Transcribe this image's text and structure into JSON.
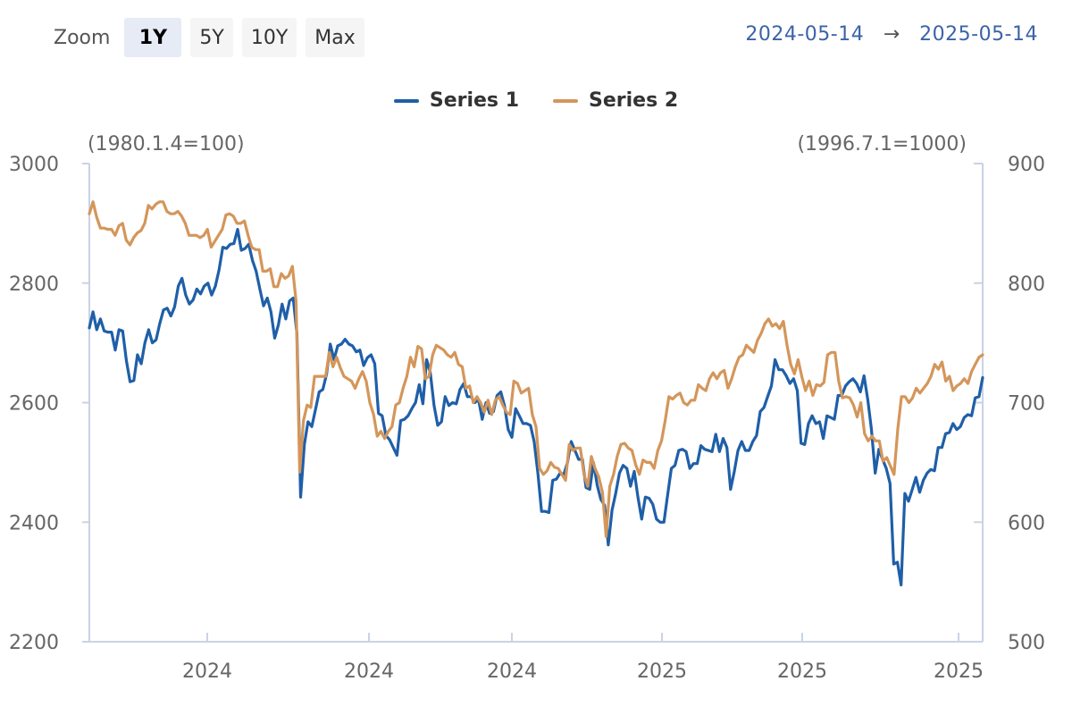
{
  "zoom": {
    "label": "Zoom",
    "options": [
      {
        "label": "1Y",
        "active": true
      },
      {
        "label": "5Y",
        "active": false
      },
      {
        "label": "10Y",
        "active": false
      },
      {
        "label": "Max",
        "active": false
      }
    ]
  },
  "range": {
    "from": "2024-05-14",
    "arrow": "→",
    "to": "2025-05-14"
  },
  "colors": {
    "series1": "#1f5fa8",
    "series2": "#d4965a",
    "axis": "#c9d3e6",
    "text": "#666666"
  },
  "chart_data": {
    "type": "line",
    "left_axis_note": "(1980.1.4=100)",
    "right_axis_note": "(1996.7.1=1000)",
    "x_tick_labels": [
      "2024",
      "2024",
      "2024",
      "2025",
      "2025",
      "2025"
    ],
    "left_axis": {
      "min": 2200,
      "max": 3000,
      "ticks": [
        2200,
        2400,
        2600,
        2800,
        3000
      ]
    },
    "right_axis": {
      "min": 500,
      "max": 900,
      "ticks": [
        500,
        600,
        700,
        800,
        900
      ]
    },
    "legend_position": "top-center",
    "grid": false,
    "series": [
      {
        "name": "Series 1",
        "axis": "left",
        "values": [
          2725,
          2752,
          2722,
          2740,
          2720,
          2718,
          2718,
          2688,
          2722,
          2720,
          2670,
          2635,
          2637,
          2680,
          2665,
          2700,
          2722,
          2700,
          2705,
          2732,
          2755,
          2758,
          2745,
          2760,
          2795,
          2808,
          2780,
          2765,
          2772,
          2790,
          2782,
          2795,
          2800,
          2780,
          2795,
          2822,
          2860,
          2858,
          2865,
          2866,
          2890,
          2855,
          2858,
          2865,
          2838,
          2820,
          2790,
          2762,
          2775,
          2752,
          2708,
          2730,
          2765,
          2740,
          2770,
          2775,
          2715,
          2442,
          2530,
          2568,
          2560,
          2588,
          2618,
          2622,
          2648,
          2698,
          2672,
          2695,
          2698,
          2706,
          2698,
          2695,
          2685,
          2688,
          2662,
          2675,
          2680,
          2665,
          2582,
          2578,
          2545,
          2538,
          2525,
          2512,
          2570,
          2572,
          2578,
          2590,
          2600,
          2630,
          2598,
          2672,
          2650,
          2595,
          2562,
          2568,
          2610,
          2595,
          2600,
          2598,
          2622,
          2632,
          2610,
          2610,
          2600,
          2605,
          2572,
          2600,
          2582,
          2585,
          2612,
          2618,
          2595,
          2555,
          2542,
          2590,
          2578,
          2565,
          2565,
          2562,
          2535,
          2482,
          2418,
          2418,
          2416,
          2470,
          2472,
          2482,
          2480,
          2500,
          2535,
          2520,
          2505,
          2505,
          2458,
          2455,
          2500,
          2462,
          2438,
          2428,
          2362,
          2420,
          2448,
          2482,
          2495,
          2490,
          2460,
          2485,
          2442,
          2405,
          2442,
          2440,
          2430,
          2405,
          2400,
          2400,
          2445,
          2490,
          2495,
          2520,
          2522,
          2518,
          2490,
          2498,
          2498,
          2528,
          2522,
          2520,
          2518,
          2547,
          2518,
          2540,
          2525,
          2455,
          2485,
          2520,
          2535,
          2520,
          2520,
          2535,
          2545,
          2585,
          2592,
          2610,
          2628,
          2672,
          2655,
          2655,
          2645,
          2632,
          2640,
          2620,
          2532,
          2530,
          2565,
          2578,
          2565,
          2568,
          2540,
          2578,
          2575,
          2572,
          2612,
          2612,
          2628,
          2635,
          2640,
          2632,
          2618,
          2645,
          2605,
          2555,
          2482,
          2522,
          2505,
          2490,
          2465,
          2330,
          2333,
          2295,
          2448,
          2435,
          2455,
          2475,
          2450,
          2470,
          2482,
          2488,
          2486,
          2525,
          2525,
          2548,
          2550,
          2565,
          2555,
          2560,
          2575,
          2580,
          2578,
          2608,
          2610,
          2642
        ]
      },
      {
        "name": "Series 2",
        "axis": "right",
        "values": [
          858,
          868,
          855,
          846,
          846,
          845,
          845,
          840,
          848,
          850,
          836,
          832,
          838,
          842,
          844,
          850,
          865,
          862,
          866,
          868,
          868,
          860,
          858,
          858,
          860,
          856,
          850,
          840,
          840,
          840,
          838,
          840,
          845,
          830,
          835,
          840,
          845,
          857,
          858,
          856,
          850,
          850,
          852,
          840,
          830,
          828,
          828,
          810,
          810,
          812,
          797,
          797,
          808,
          804,
          806,
          814,
          785,
          642,
          685,
          698,
          696,
          722,
          722,
          722,
          722,
          742,
          730,
          738,
          729,
          722,
          720,
          718,
          712,
          720,
          726,
          718,
          700,
          690,
          672,
          676,
          670,
          676,
          680,
          698,
          700,
          712,
          722,
          738,
          730,
          747,
          745,
          720,
          722,
          740,
          748,
          746,
          744,
          740,
          738,
          742,
          732,
          730,
          712,
          714,
          700,
          705,
          700,
          692,
          702,
          690,
          702,
          705,
          698,
          692,
          690,
          718,
          716,
          708,
          710,
          712,
          690,
          680,
          645,
          640,
          643,
          650,
          646,
          645,
          640,
          635,
          665,
          660,
          662,
          662,
          640,
          630,
          655,
          645,
          638,
          625,
          588,
          630,
          640,
          655,
          665,
          666,
          662,
          660,
          648,
          640,
          652,
          650,
          650,
          645,
          660,
          668,
          685,
          705,
          703,
          706,
          708,
          700,
          698,
          702,
          702,
          715,
          712,
          710,
          720,
          725,
          720,
          725,
          727,
          712,
          720,
          730,
          738,
          740,
          748,
          745,
          742,
          752,
          758,
          766,
          770,
          764,
          766,
          762,
          768,
          748,
          732,
          724,
          736,
          722,
          710,
          718,
          706,
          715,
          714,
          717,
          740,
          742,
          742,
          718,
          704,
          705,
          704,
          698,
          688,
          700,
          674,
          668,
          672,
          668,
          668,
          651,
          654,
          647,
          640,
          678,
          705,
          705,
          700,
          704,
          712,
          708,
          712,
          716,
          722,
          732,
          728,
          734,
          718,
          722,
          710,
          714,
          716,
          720,
          716,
          726,
          732,
          738,
          740
        ]
      }
    ]
  }
}
